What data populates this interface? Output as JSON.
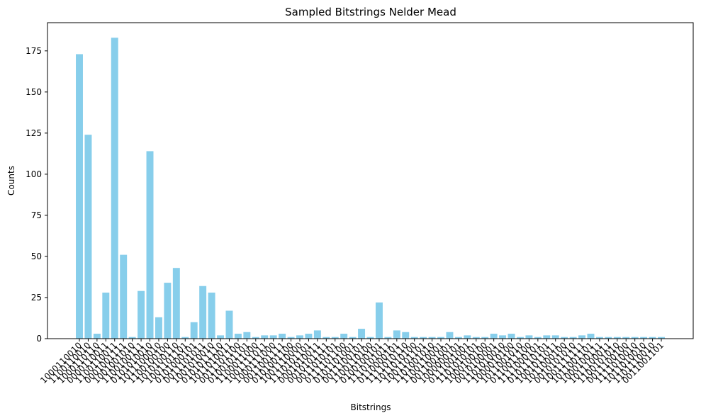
{
  "colors": {
    "bar": "#87CEEB",
    "axis": "#000000",
    "background": "#ffffff"
  },
  "chart_data": {
    "type": "bar",
    "title": "Sampled Bitstrings Nelder Mead",
    "xlabel": "Bitstrings",
    "ylabel": "Counts",
    "ylim": [
      0,
      192.15
    ],
    "yticks": [
      0,
      25,
      50,
      75,
      100,
      125,
      150,
      175
    ],
    "grid": false,
    "categories": [
      "1000110010",
      "1100110010",
      "1000110110",
      "0000110011",
      "1100110011",
      "0001001111",
      "1001001010",
      "1100100111",
      "0101010010",
      "1011100010",
      "1100100100",
      "1010100110",
      "1001101101",
      "0101000101",
      "0011101011",
      "1001010010",
      "0101011110",
      "1011010011",
      "0011101100",
      "0100101101",
      "1100011000",
      "1001111011",
      "1000111000",
      "0011001111",
      "0101001100",
      "1001110000",
      "1110101101",
      "0001010011",
      "0010101111",
      "0011010101",
      "0111101100",
      "0101101001",
      "0011100101",
      "1100110100",
      "0100100101",
      "1110101011",
      "0110000101",
      "1111010110",
      "1011010100",
      "1001101101",
      "1101001010",
      "1100110001",
      "0011001001",
      "1000000101",
      "0111001001",
      "1101010101",
      "1000100100",
      "0010100001",
      "1101010010",
      "1000010100",
      "1011001010",
      "0110011100",
      "1111000101",
      "0101110101",
      "1001011011",
      "1011000100",
      "0010101010",
      "1001111111",
      "1011001101",
      "1000100111",
      "1011100011",
      "1100101010",
      "0011100100",
      "1111010010",
      "1011010010",
      "1101110010",
      "0011001101"
    ],
    "values": [
      173,
      124,
      3,
      28,
      183,
      51,
      1,
      29,
      114,
      13,
      34,
      43,
      1,
      10,
      32,
      28,
      2,
      17,
      3,
      4,
      1,
      2,
      2,
      3,
      1,
      2,
      3,
      5,
      1,
      1,
      3,
      1,
      6,
      1,
      22,
      1,
      5,
      4,
      1,
      1,
      1,
      1,
      4,
      1,
      2,
      1,
      1,
      3,
      2,
      3,
      1,
      2,
      1,
      2,
      2,
      1,
      1,
      2,
      3,
      1,
      1,
      1,
      1,
      1,
      1,
      1,
      1
    ]
  }
}
